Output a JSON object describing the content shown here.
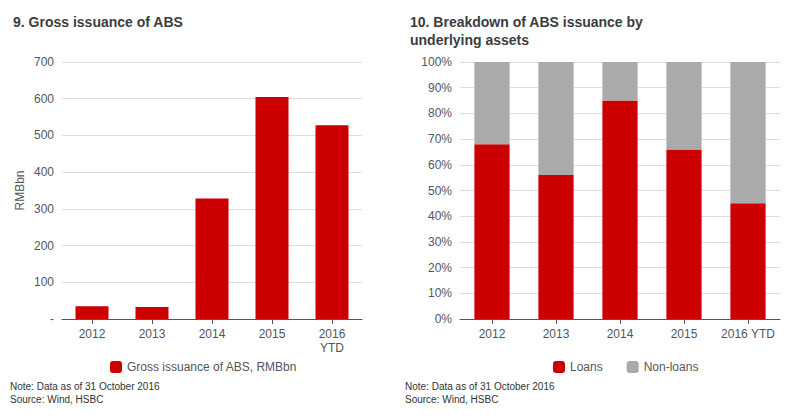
{
  "chart_data": [
    {
      "type": "bar",
      "title": "9. Gross issuance of ABS",
      "categories": [
        "2012",
        "2013",
        "2014",
        "2015",
        "2016\nYTD"
      ],
      "series": [
        {
          "name": "Gross issuance of ABS, RMBbn",
          "color": "#cc0000",
          "values": [
            35,
            33,
            328,
            605,
            528
          ]
        }
      ],
      "ylabel": "RMBbn",
      "ylim": [
        0,
        700
      ],
      "yticks": [
        {
          "value": 0,
          "label": "-"
        },
        100,
        200,
        300,
        400,
        500,
        600,
        700
      ],
      "grid": true,
      "legend": "bottom",
      "annotations": [
        "Note: Data as of 31 October 2016\nSource: Wind, HSBC"
      ]
    },
    {
      "type": "bar",
      "title": "10. Breakdown of ABS issuance by\nunderlying assets",
      "categories": [
        "2012",
        "2013",
        "2014",
        "2015",
        "2016 YTD"
      ],
      "series": [
        {
          "name": "Loans",
          "color": "#cc0000",
          "values": [
            68,
            56,
            85,
            66,
            45
          ]
        },
        {
          "name": "Non-loans",
          "color": "#aaaaaa",
          "values": [
            32,
            44,
            15,
            34,
            55
          ]
        }
      ],
      "stacked": true,
      "ylim": [
        0,
        100
      ],
      "yticks": [
        {
          "value": 0,
          "label": "0%"
        },
        {
          "value": 10,
          "label": "10%"
        },
        {
          "value": 20,
          "label": "20%"
        },
        {
          "value": 30,
          "label": "30%"
        },
        {
          "value": 40,
          "label": "40%"
        },
        {
          "value": 50,
          "label": "50%"
        },
        {
          "value": 60,
          "label": "60%"
        },
        {
          "value": 70,
          "label": "70%"
        },
        {
          "value": 80,
          "label": "80%"
        },
        {
          "value": 90,
          "label": "90%"
        },
        {
          "value": 100,
          "label": "100%"
        }
      ],
      "grid": true,
      "legend": "bottom",
      "annotations": [
        "Note: Data as of 31 October 2016\nSource: Wind, HSBC"
      ]
    }
  ]
}
